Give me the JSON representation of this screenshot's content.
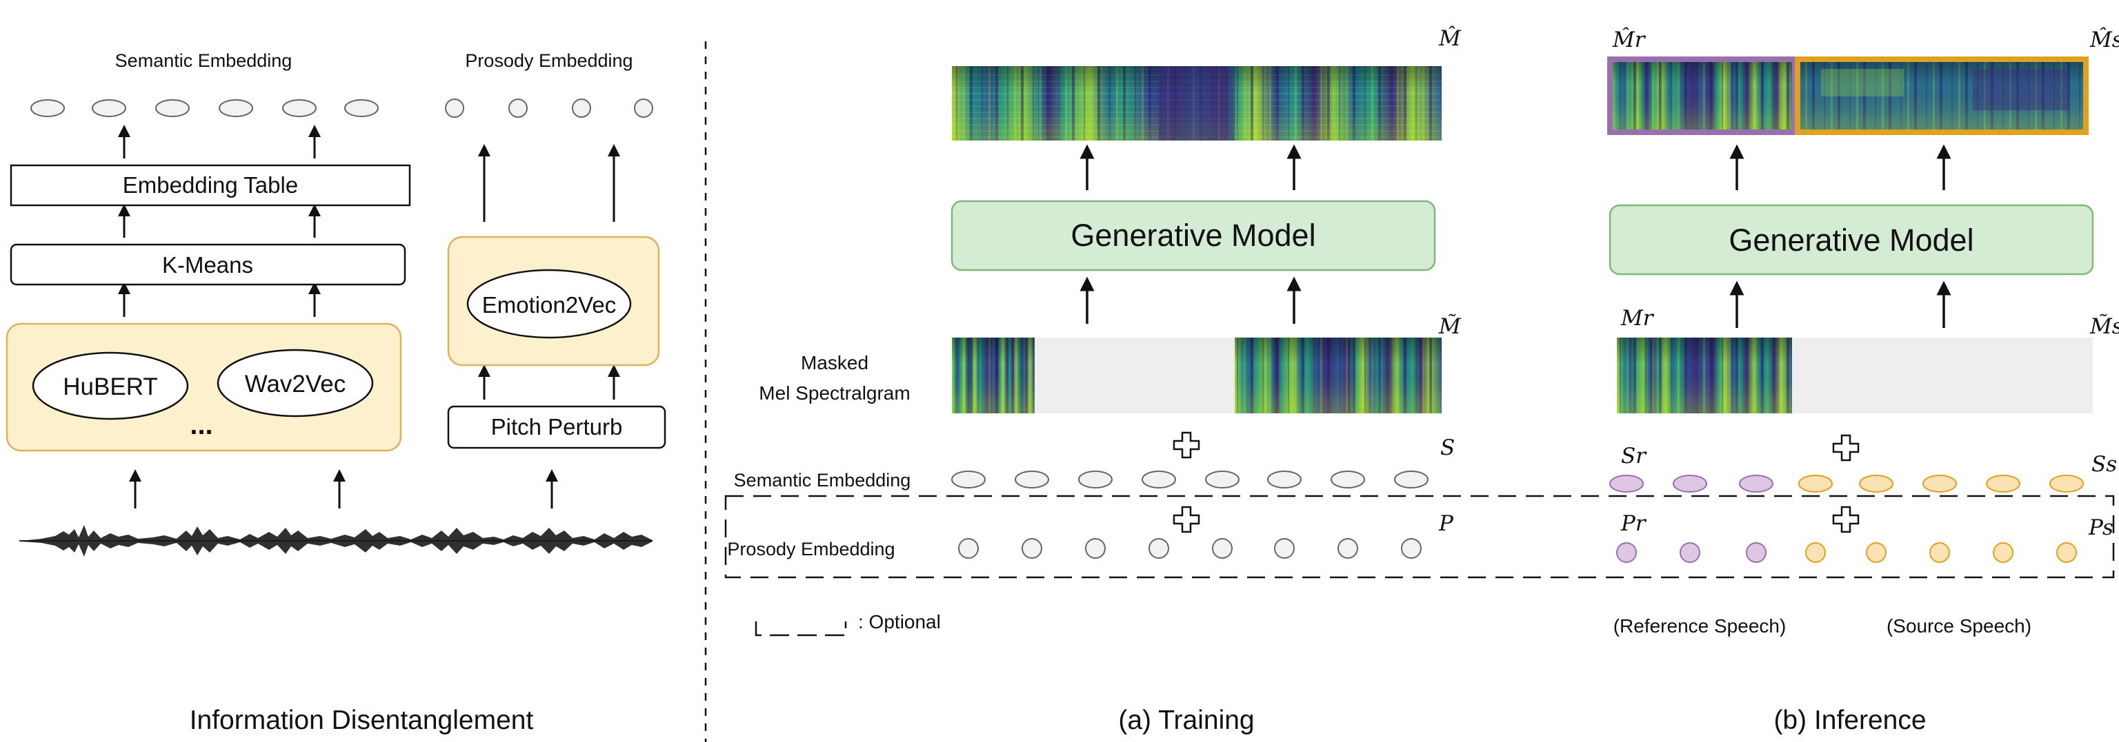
{
  "left_panel": {
    "semantic_title": "Semantic Embedding",
    "prosody_title": "Prosody Embedding",
    "embedding_table": "Embedding Table",
    "kmeans": "K-Means",
    "hubert": "HuBERT",
    "wav2vec": "Wav2Vec",
    "ellipsis": "...",
    "emotion2vec": "Emotion2Vec",
    "pitch_perturb": "Pitch Perturb",
    "caption": "Information Disentanglement"
  },
  "training": {
    "m_hat": "M̂",
    "m_tilde": "M̃",
    "generative_model": "Generative Model",
    "masked_line1": "Masked",
    "masked_line2": "Mel Spectralgram",
    "semantic_label": "Semantic Embedding",
    "prosody_label": "Prosody Embedding",
    "s_label": "S",
    "p_label": "P",
    "optional_label": ": Optional",
    "caption": "(a) Training"
  },
  "inference": {
    "m_hat_r": "M̂r",
    "m_hat_s": "M̂s",
    "generative_model": "Generative Model",
    "m_r": "Mr",
    "m_tilde_s": "M̃s",
    "s_r": "Sr",
    "s_s": "Ss",
    "p_r": "Pr",
    "p_s": "Ps",
    "reference_label": "(Reference Speech)",
    "source_label": "(Source Speech)",
    "caption": "(b) Inference"
  },
  "colors": {
    "yellow_fill": "#fdf0cc",
    "yellow_stroke": "#d9b45a",
    "green_fill": "#d5ecd4",
    "green_stroke": "#7fb77a",
    "purple_fill": "#ddc7e4",
    "purple_stroke": "#9a6fae",
    "orange_fill": "#fbe2b4",
    "orange_stroke": "#e0a020",
    "gray_fill": "#eeeeee",
    "spectrogram_dark": "#3b2c79",
    "spectrogram_mid": "#1f8f8a",
    "spectrogram_light": "#b5dc3a"
  }
}
